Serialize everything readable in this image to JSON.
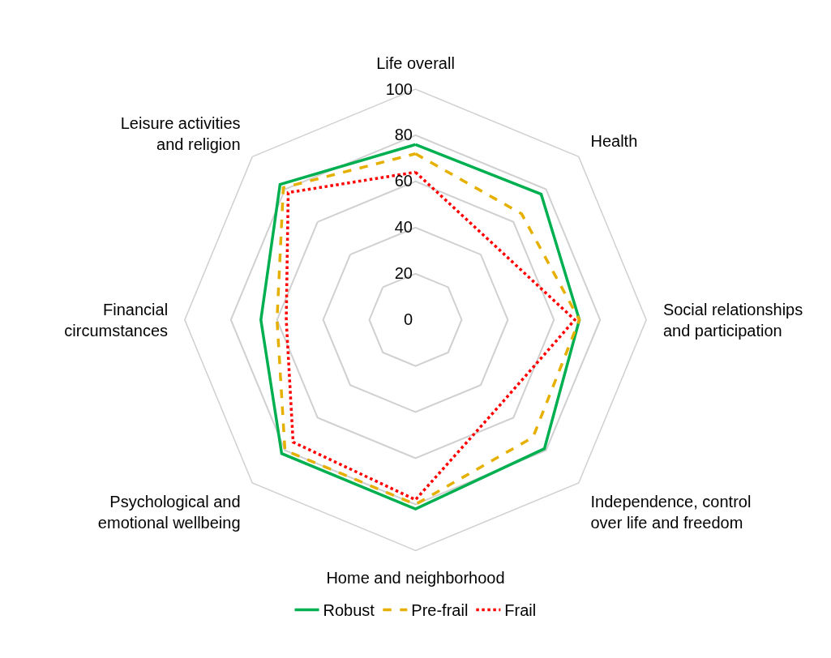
{
  "chart_data": {
    "type": "radar",
    "categories": [
      "Life overall",
      "Health",
      "Social relationships and participation",
      "Independence, control over life and freedom",
      "Home and neighborhood",
      "Psychological and emotional wellbeing",
      "Financial circumstances",
      "Leisure activities and religion"
    ],
    "series": [
      {
        "name": "Robust",
        "color": "#00b050",
        "line_style": "solid",
        "values": [
          76,
          77,
          71,
          79,
          82,
          82,
          67,
          83
        ]
      },
      {
        "name": "Pre-frail",
        "color": "#e6b000",
        "line_style": "dashed",
        "values": [
          72,
          65,
          71,
          72,
          80,
          80,
          60,
          81
        ]
      },
      {
        "name": "Frail",
        "color": "#ff0000",
        "line_style": "dotted",
        "values": [
          64,
          47,
          69,
          52,
          78,
          75,
          56,
          78
        ]
      }
    ],
    "ylim": [
      0,
      100
    ],
    "yticks": [
      0,
      20,
      40,
      60,
      80,
      100
    ],
    "grid": true,
    "legend": "bottom",
    "marker": "none"
  }
}
